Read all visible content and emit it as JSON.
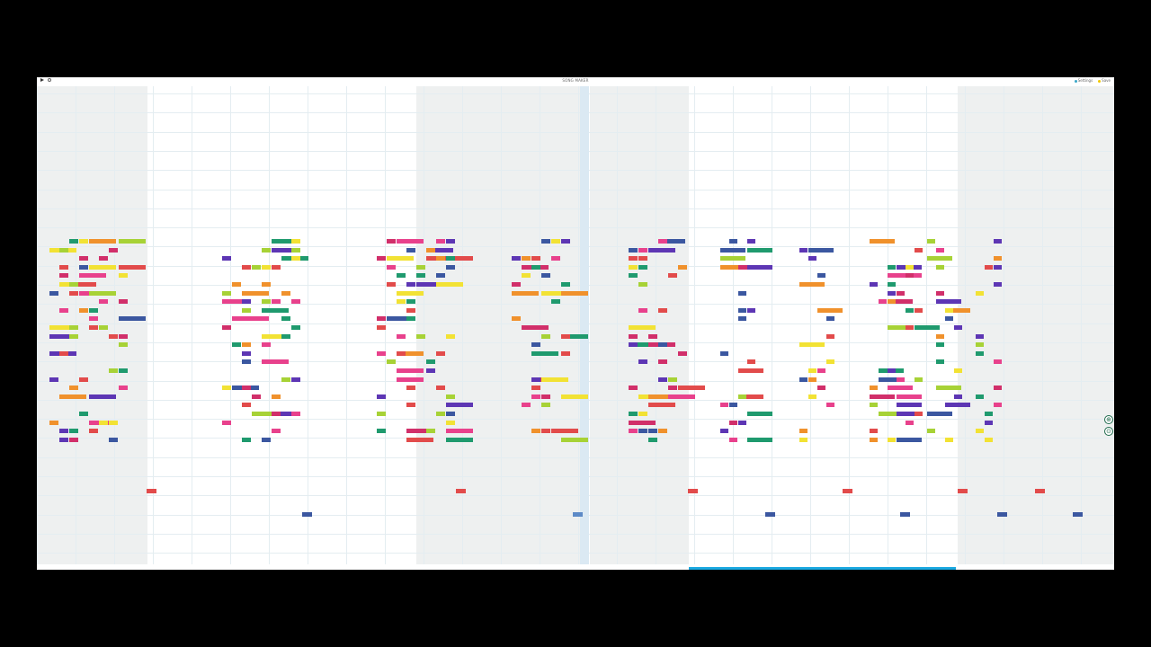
{
  "app": {
    "title": "SONG MAKER",
    "right_items": [
      {
        "label": "Settings",
        "color": "#3ba7c9"
      },
      {
        "label": "Save",
        "color": "#f2c800"
      }
    ]
  },
  "icons": {
    "play": "play-icon",
    "loop": "loop-icon",
    "zoom_in": "zoom-in-icon",
    "zoom_out": "zoom-out-icon"
  },
  "colors": {
    "shaded_measure": "#eef0f0",
    "gridline": "#e4edf1",
    "playhead": "#dbe9f3",
    "progress": "#1aa8e0",
    "palette": [
      "#e8418c",
      "#5d36b4",
      "#1f9a6e",
      "#a7d236",
      "#f2e234",
      "#f0912c",
      "#e24b4b",
      "#3b57a0",
      "#d12f6a"
    ]
  },
  "progress": 0.25,
  "note_count": 420
}
